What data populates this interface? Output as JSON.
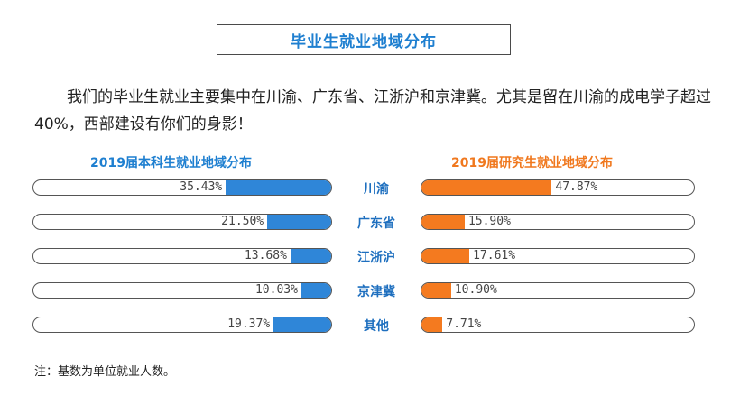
{
  "title": "毕业生就业地域分布",
  "intro": "我们的毕业生就业主要集中在川渝、广东省、江浙沪和京津冀。尤其是留在川渝的成电学子超过40%，西部建设有你们的身影！",
  "note": "注：基数为单位就业人数。",
  "colors": {
    "undergrad": "#2f86d8",
    "graduate": "#f47a1f",
    "title": "#1e7fd0"
  },
  "chart_data": [
    {
      "type": "bar",
      "title": "2019届本科生就业地域分布",
      "categories": [
        "川渝",
        "广东省",
        "江浙沪",
        "京津冀",
        "其他"
      ],
      "values": [
        35.43,
        21.5,
        13.68,
        10.03,
        19.37
      ],
      "labels": [
        "35.43%",
        "21.50%",
        "13.68%",
        "10.03%",
        "19.37%"
      ],
      "xlim": [
        0,
        100
      ],
      "direction": "right-to-left"
    },
    {
      "type": "bar",
      "title": "2019届研究生就业地域分布",
      "categories": [
        "川渝",
        "广东省",
        "江浙沪",
        "京津冀",
        "其他"
      ],
      "values": [
        47.87,
        15.9,
        17.61,
        10.9,
        7.71
      ],
      "labels": [
        "47.87%",
        "15.90%",
        "17.61%",
        "10.90%",
        "7.71%"
      ],
      "xlim": [
        0,
        100
      ],
      "direction": "left-to-right"
    }
  ]
}
